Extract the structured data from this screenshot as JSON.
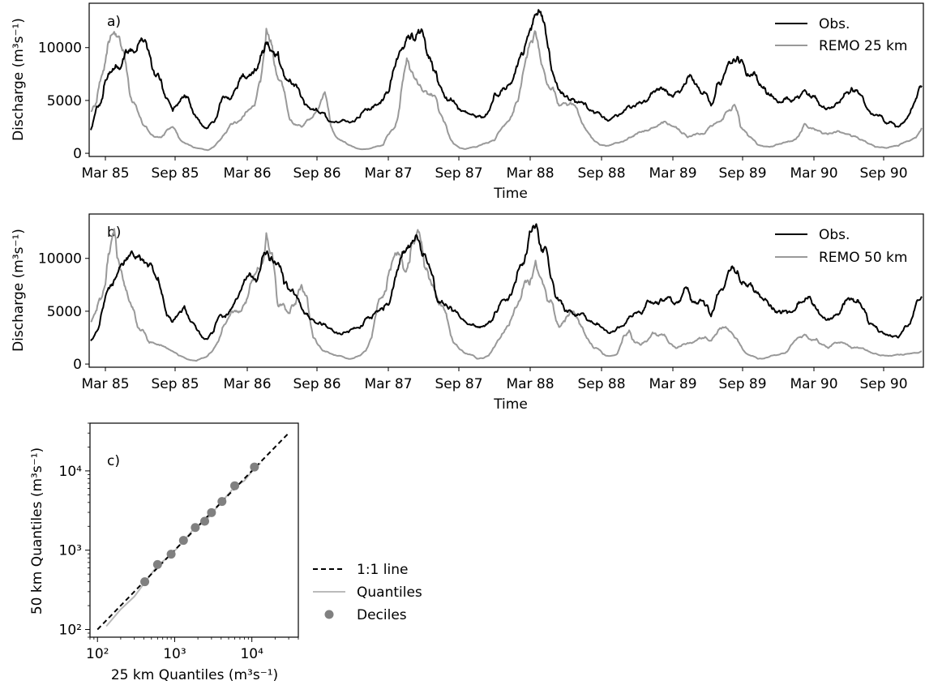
{
  "chart_data": [
    {
      "type": "line",
      "panel_label": "a)",
      "xlabel": "Time",
      "ylabel": "Discharge (m³s⁻¹)",
      "ylim": [
        -300,
        14200
      ],
      "xticks": [
        "Mar 85",
        "Sep 85",
        "Mar 86",
        "Sep 86",
        "Mar 87",
        "Sep 87",
        "Mar 88",
        "Sep 88",
        "Mar 89",
        "Sep 89",
        "Mar 90",
        "Sep 90"
      ],
      "yticks": [
        0,
        5000,
        10000
      ],
      "legend_position": "top-right",
      "x": [
        "1985-01",
        "1985-02",
        "1985-03",
        "1985-04",
        "1985-05",
        "1985-06",
        "1985-07",
        "1985-08",
        "1985-09",
        "1985-10",
        "1985-11",
        "1985-12",
        "1986-01",
        "1986-02",
        "1986-03",
        "1986-04",
        "1986-05",
        "1986-06",
        "1986-07",
        "1986-08",
        "1986-09",
        "1986-10",
        "1986-11",
        "1986-12",
        "1987-01",
        "1987-02",
        "1987-03",
        "1987-04",
        "1987-05",
        "1987-06",
        "1987-07",
        "1987-08",
        "1987-09",
        "1987-10",
        "1987-11",
        "1987-12",
        "1988-01",
        "1988-02",
        "1988-03",
        "1988-04",
        "1988-05",
        "1988-06",
        "1988-07",
        "1988-08",
        "1988-09",
        "1988-10",
        "1988-11",
        "1988-12",
        "1989-01",
        "1989-02",
        "1989-03",
        "1989-04",
        "1989-05",
        "1989-06",
        "1989-07",
        "1989-08",
        "1989-09",
        "1989-10",
        "1989-11",
        "1989-12",
        "1990-01",
        "1990-02",
        "1990-03",
        "1990-04",
        "1990-05",
        "1990-06",
        "1990-07",
        "1990-08",
        "1990-09",
        "1990-10",
        "1990-11",
        "1990-12"
      ],
      "series": [
        {
          "name": "Obs.",
          "color": "#000000",
          "values": [
            2200,
            5200,
            8000,
            9800,
            10200,
            9400,
            7000,
            4000,
            5500,
            3400,
            2400,
            4600,
            5200,
            7500,
            8000,
            10500,
            9600,
            7000,
            5300,
            4200,
            3800,
            3000,
            3000,
            3400,
            4300,
            5100,
            8200,
            11000,
            11700,
            9000,
            6000,
            5000,
            4000,
            3500,
            4000,
            5800,
            6800,
            9500,
            13100,
            10500,
            6000,
            5000,
            4800,
            3800,
            3200,
            3500,
            4500,
            4800,
            5800,
            6000,
            5800,
            7200,
            6000,
            4500,
            7000,
            8800,
            7400,
            6800,
            5500,
            4800,
            5000,
            6000,
            5200,
            4300,
            4800,
            6200,
            5200,
            3600,
            2800,
            2500,
            3800,
            6400
          ]
        },
        {
          "name": "REMO 25 km",
          "color": "#999999",
          "values": [
            4000,
            7500,
            11500,
            8500,
            4000,
            2000,
            1500,
            2500,
            1000,
            500,
            300,
            1200,
            2800,
            3500,
            4500,
            11800,
            7000,
            3200,
            2500,
            3500,
            5800,
            1500,
            800,
            400,
            500,
            800,
            2500,
            9000,
            6500,
            5500,
            3500,
            900,
            400,
            600,
            1000,
            2200,
            3600,
            8000,
            11500,
            6500,
            4500,
            4800,
            2800,
            1200,
            700,
            1000,
            1500,
            2000,
            2400,
            3000,
            2500,
            1500,
            1800,
            2600,
            3200,
            4600,
            2000,
            800,
            600,
            900,
            1200,
            2800,
            2200,
            1800,
            2000,
            1600,
            1200,
            600,
            500,
            700,
            1200,
            2400
          ]
        }
      ]
    },
    {
      "type": "line",
      "panel_label": "b)",
      "xlabel": "Time",
      "ylabel": "Discharge (m³s⁻¹)",
      "ylim": [
        -300,
        14200
      ],
      "xticks": [
        "Mar 85",
        "Sep 85",
        "Mar 86",
        "Sep 86",
        "Mar 87",
        "Sep 87",
        "Mar 88",
        "Sep 88",
        "Mar 89",
        "Sep 89",
        "Mar 90",
        "Sep 90"
      ],
      "yticks": [
        0,
        5000,
        10000
      ],
      "legend_position": "top-right",
      "x": [
        "1985-01",
        "1985-02",
        "1985-03",
        "1985-04",
        "1985-05",
        "1985-06",
        "1985-07",
        "1985-08",
        "1985-09",
        "1985-10",
        "1985-11",
        "1985-12",
        "1986-01",
        "1986-02",
        "1986-03",
        "1986-04",
        "1986-05",
        "1986-06",
        "1986-07",
        "1986-08",
        "1986-09",
        "1986-10",
        "1986-11",
        "1986-12",
        "1987-01",
        "1987-02",
        "1987-03",
        "1987-04",
        "1987-05",
        "1987-06",
        "1987-07",
        "1987-08",
        "1987-09",
        "1987-10",
        "1987-11",
        "1987-12",
        "1988-01",
        "1988-02",
        "1988-03",
        "1988-04",
        "1988-05",
        "1988-06",
        "1988-07",
        "1988-08",
        "1988-09",
        "1988-10",
        "1988-11",
        "1988-12",
        "1989-01",
        "1989-02",
        "1989-03",
        "1989-04",
        "1989-05",
        "1989-06",
        "1989-07",
        "1989-08",
        "1989-09",
        "1989-10",
        "1989-11",
        "1989-12",
        "1990-01",
        "1990-02",
        "1990-03",
        "1990-04",
        "1990-05",
        "1990-06",
        "1990-07",
        "1990-08",
        "1990-09",
        "1990-10",
        "1990-11",
        "1990-12"
      ],
      "series": [
        {
          "name": "Obs.",
          "color": "#000000",
          "values": [
            2200,
            5200,
            8000,
            9800,
            10200,
            9400,
            7000,
            4000,
            5500,
            3400,
            2400,
            4600,
            5200,
            7500,
            8000,
            10500,
            9600,
            7000,
            5300,
            4200,
            3800,
            3000,
            3000,
            3400,
            4300,
            5100,
            8200,
            11000,
            11700,
            9000,
            6000,
            5000,
            4000,
            3500,
            4000,
            5800,
            6800,
            9500,
            13100,
            10500,
            6000,
            5000,
            4800,
            3800,
            3200,
            3500,
            4500,
            4800,
            5800,
            6000,
            5800,
            7200,
            6000,
            4500,
            7000,
            8800,
            7400,
            6800,
            5500,
            4800,
            5000,
            6000,
            5200,
            4300,
            4800,
            6200,
            5200,
            3600,
            2800,
            2500,
            3800,
            6400
          ]
        },
        {
          "name": "REMO 50 km",
          "color": "#999999",
          "values": [
            4000,
            6500,
            12800,
            7000,
            3500,
            2000,
            1800,
            1200,
            600,
            300,
            800,
            2500,
            5000,
            5500,
            8500,
            12400,
            5500,
            4800,
            7500,
            2500,
            1200,
            800,
            500,
            800,
            2500,
            6500,
            10500,
            9000,
            12500,
            8000,
            5500,
            2000,
            1000,
            500,
            800,
            2500,
            4500,
            7500,
            9800,
            6000,
            3500,
            5000,
            3500,
            1500,
            800,
            1000,
            3200,
            1800,
            3000,
            2800,
            1500,
            2000,
            2500,
            2200,
            3500,
            2500,
            1000,
            500,
            700,
            1000,
            2000,
            2800,
            2400,
            1500,
            2000,
            1500,
            1500,
            1000,
            800,
            900,
            1000,
            1200
          ]
        }
      ]
    },
    {
      "type": "scatter",
      "panel_label": "c)",
      "xlabel": "25 km Quantiles (m³s⁻¹)",
      "ylabel": "50 km Quantiles (m³s⁻¹)",
      "xscale": "log",
      "yscale": "log",
      "xlim": [
        80,
        40000
      ],
      "ylim": [
        80,
        40000
      ],
      "xticks": [
        "10²",
        "10³",
        "10⁴"
      ],
      "yticks": [
        "10²",
        "10³",
        "10⁴"
      ],
      "legend_position": "outside-right",
      "series": [
        {
          "name": "1:1 line",
          "color": "#000000",
          "style": "dashed",
          "x": [
            100,
            30000
          ],
          "y": [
            100,
            30000
          ]
        },
        {
          "name": "Quantiles",
          "color": "#bbbbbb",
          "style": "solid",
          "x": [
            130,
            200,
            300,
            400,
            600,
            900,
            1300,
            1800,
            2500,
            3000,
            4000,
            6000,
            8000,
            11000,
            13000
          ],
          "y": [
            110,
            180,
            260,
            380,
            640,
            880,
            1300,
            1900,
            2300,
            2900,
            4000,
            6300,
            7500,
            11000,
            12500
          ]
        },
        {
          "name": "Deciles",
          "color": "#808080",
          "style": "marker",
          "x": [
            410,
            600,
            900,
            1300,
            1850,
            2450,
            3000,
            4100,
            6000,
            10800
          ],
          "y": [
            400,
            660,
            890,
            1330,
            1930,
            2320,
            2980,
            4110,
            6500,
            11200
          ]
        }
      ]
    }
  ]
}
